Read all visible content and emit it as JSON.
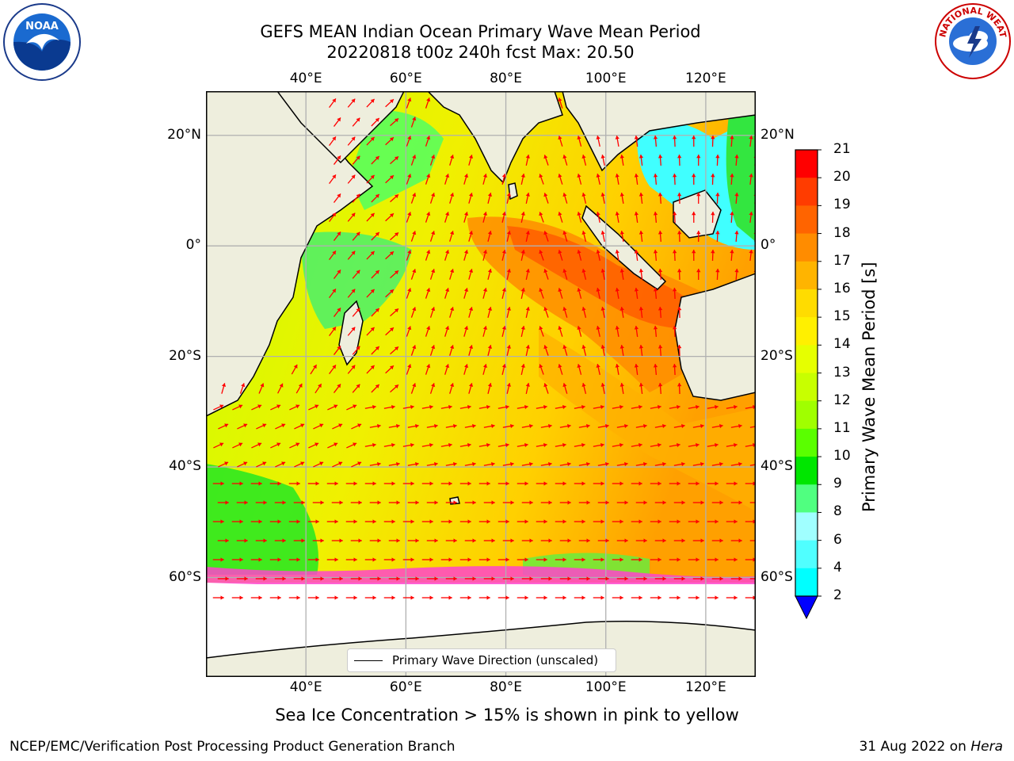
{
  "title": {
    "line1": "GEFS MEAN Indian Ocean Primary Wave Mean Period",
    "line2": "20220818 t00z 240h fcst   Max: 20.50"
  },
  "axes": {
    "lon_ticks": [
      "40°E",
      "60°E",
      "80°E",
      "100°E",
      "120°E"
    ],
    "lat_ticks": [
      "20°N",
      "0°",
      "20°S",
      "40°S",
      "60°S"
    ],
    "lon_values": [
      40,
      60,
      80,
      100,
      120
    ],
    "lat_values": [
      20,
      0,
      -20,
      -40,
      -60
    ],
    "lon_range": [
      20,
      130
    ],
    "lat_range": [
      -78,
      28
    ]
  },
  "colorbar": {
    "label": "Primary Wave Mean Period [s]",
    "ticks": [
      "21",
      "20",
      "19",
      "18",
      "17",
      "16",
      "15",
      "14",
      "13",
      "12",
      "11",
      "10",
      "9",
      "8",
      "6",
      "4",
      "2"
    ],
    "colors": [
      "#ff0000",
      "#ff3c00",
      "#ff6400",
      "#ff8c00",
      "#ffb400",
      "#ffdc00",
      "#fff000",
      "#e6ff00",
      "#c8ff00",
      "#a0ff00",
      "#5aff00",
      "#00e600",
      "#50ff80",
      "#a0ffff",
      "#50ffff",
      "#00ffff",
      "#00b4ff",
      "#0050ff"
    ],
    "arrow_color": "#0000ff"
  },
  "legend": {
    "label": "Primary Wave Direction (unscaled)"
  },
  "caption": "Sea Ice Concentration > 15% is shown in pink to yellow",
  "footer": {
    "left": "NCEP/EMC/Verification Post Processing Product Generation Branch",
    "right_date": "31 Aug 2022 on ",
    "right_machine": "Hera"
  },
  "logos": {
    "left": "NOAA",
    "right": "NATIONAL WEATHER SERVICE"
  },
  "colors": {
    "land": "#eeeedd",
    "arrow": "#ff0000",
    "sea_ice": "#ff44cc"
  }
}
